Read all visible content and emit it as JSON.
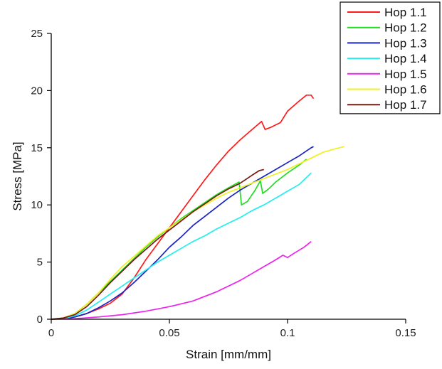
{
  "chart_data": {
    "type": "line",
    "xlabel": "Strain [mm/mm]",
    "ylabel": "Stress [MPa]",
    "xlim": [
      0,
      0.15
    ],
    "ylim": [
      0,
      25
    ],
    "xticks": [
      0,
      0.05,
      0.1,
      0.15
    ],
    "xtick_labels": [
      "0",
      "0.05",
      "0.1",
      "0.15"
    ],
    "yticks": [
      0,
      5,
      10,
      15,
      20,
      25
    ],
    "ytick_labels": [
      "0",
      "5",
      "10",
      "15",
      "20",
      "25"
    ],
    "grid": false,
    "legend_position": "top-right",
    "series": [
      {
        "name": "Hop 1.1",
        "color": "#ff1a1a",
        "points": [
          [
            0,
            0
          ],
          [
            0.005,
            0.05
          ],
          [
            0.01,
            0.2
          ],
          [
            0.015,
            0.5
          ],
          [
            0.02,
            0.9
          ],
          [
            0.025,
            1.4
          ],
          [
            0.03,
            2.2
          ],
          [
            0.035,
            3.6
          ],
          [
            0.04,
            5.2
          ],
          [
            0.045,
            6.6
          ],
          [
            0.05,
            8.0
          ],
          [
            0.055,
            9.4
          ],
          [
            0.06,
            10.8
          ],
          [
            0.065,
            12.2
          ],
          [
            0.07,
            13.5
          ],
          [
            0.075,
            14.7
          ],
          [
            0.08,
            15.7
          ],
          [
            0.085,
            16.6
          ],
          [
            0.089,
            17.3
          ],
          [
            0.0905,
            16.6
          ],
          [
            0.093,
            16.8
          ],
          [
            0.097,
            17.2
          ],
          [
            0.1,
            18.2
          ],
          [
            0.105,
            19.1
          ],
          [
            0.108,
            19.6
          ],
          [
            0.11,
            19.6
          ],
          [
            0.111,
            19.3
          ]
        ]
      },
      {
        "name": "Hop 1.2",
        "color": "#22dd22",
        "points": [
          [
            0,
            0
          ],
          [
            0.005,
            0.1
          ],
          [
            0.01,
            0.5
          ],
          [
            0.015,
            1.3
          ],
          [
            0.02,
            2.3
          ],
          [
            0.025,
            3.3
          ],
          [
            0.03,
            4.3
          ],
          [
            0.035,
            5.3
          ],
          [
            0.04,
            6.3
          ],
          [
            0.045,
            7.2
          ],
          [
            0.05,
            8.0
          ],
          [
            0.055,
            8.8
          ],
          [
            0.06,
            9.5
          ],
          [
            0.065,
            10.2
          ],
          [
            0.07,
            10.9
          ],
          [
            0.075,
            11.5
          ],
          [
            0.0795,
            12.0
          ],
          [
            0.0805,
            10.0
          ],
          [
            0.083,
            10.3
          ],
          [
            0.086,
            11.2
          ],
          [
            0.0885,
            12.1
          ],
          [
            0.0895,
            11.0
          ],
          [
            0.092,
            11.4
          ],
          [
            0.095,
            12.0
          ],
          [
            0.1,
            12.8
          ],
          [
            0.105,
            13.5
          ],
          [
            0.108,
            14.0
          ]
        ]
      },
      {
        "name": "Hop 1.3",
        "color": "#1a24c4",
        "points": [
          [
            0,
            0
          ],
          [
            0.005,
            0.05
          ],
          [
            0.01,
            0.2
          ],
          [
            0.015,
            0.5
          ],
          [
            0.02,
            1.0
          ],
          [
            0.025,
            1.6
          ],
          [
            0.03,
            2.3
          ],
          [
            0.035,
            3.2
          ],
          [
            0.04,
            4.2
          ],
          [
            0.045,
            5.2
          ],
          [
            0.05,
            6.3
          ],
          [
            0.055,
            7.2
          ],
          [
            0.06,
            8.2
          ],
          [
            0.065,
            9.0
          ],
          [
            0.07,
            9.8
          ],
          [
            0.075,
            10.6
          ],
          [
            0.08,
            11.3
          ],
          [
            0.085,
            11.9
          ],
          [
            0.09,
            12.5
          ],
          [
            0.095,
            13.1
          ],
          [
            0.1,
            13.7
          ],
          [
            0.105,
            14.3
          ],
          [
            0.11,
            15.0
          ],
          [
            0.111,
            15.1
          ]
        ]
      },
      {
        "name": "Hop 1.4",
        "color": "#22eeee",
        "points": [
          [
            0,
            0
          ],
          [
            0.005,
            0.05
          ],
          [
            0.01,
            0.3
          ],
          [
            0.015,
            0.8
          ],
          [
            0.02,
            1.5
          ],
          [
            0.025,
            2.2
          ],
          [
            0.03,
            2.9
          ],
          [
            0.035,
            3.6
          ],
          [
            0.04,
            4.3
          ],
          [
            0.045,
            5.0
          ],
          [
            0.05,
            5.6
          ],
          [
            0.055,
            6.2
          ],
          [
            0.06,
            6.8
          ],
          [
            0.065,
            7.3
          ],
          [
            0.07,
            7.9
          ],
          [
            0.075,
            8.4
          ],
          [
            0.08,
            8.9
          ],
          [
            0.085,
            9.5
          ],
          [
            0.09,
            10.0
          ],
          [
            0.095,
            10.6
          ],
          [
            0.1,
            11.2
          ],
          [
            0.105,
            11.8
          ],
          [
            0.11,
            12.8
          ]
        ]
      },
      {
        "name": "Hop 1.5",
        "color": "#ee22ee",
        "points": [
          [
            0,
            0
          ],
          [
            0.01,
            0.05
          ],
          [
            0.02,
            0.2
          ],
          [
            0.03,
            0.4
          ],
          [
            0.04,
            0.7
          ],
          [
            0.05,
            1.1
          ],
          [
            0.06,
            1.6
          ],
          [
            0.065,
            2.0
          ],
          [
            0.07,
            2.4
          ],
          [
            0.075,
            2.9
          ],
          [
            0.08,
            3.4
          ],
          [
            0.085,
            4.0
          ],
          [
            0.09,
            4.6
          ],
          [
            0.095,
            5.2
          ],
          [
            0.098,
            5.6
          ],
          [
            0.1,
            5.4
          ],
          [
            0.103,
            5.8
          ],
          [
            0.107,
            6.3
          ],
          [
            0.11,
            6.8
          ]
        ]
      },
      {
        "name": "Hop 1.6",
        "color": "#f0f022",
        "points": [
          [
            0,
            0
          ],
          [
            0.005,
            0.1
          ],
          [
            0.01,
            0.5
          ],
          [
            0.015,
            1.3
          ],
          [
            0.02,
            2.3
          ],
          [
            0.025,
            3.5
          ],
          [
            0.03,
            4.6
          ],
          [
            0.035,
            5.5
          ],
          [
            0.04,
            6.4
          ],
          [
            0.045,
            7.3
          ],
          [
            0.05,
            8.0
          ],
          [
            0.055,
            8.7
          ],
          [
            0.06,
            9.4
          ],
          [
            0.065,
            10.0
          ],
          [
            0.07,
            10.6
          ],
          [
            0.075,
            11.1
          ],
          [
            0.08,
            11.5
          ],
          [
            0.085,
            11.9
          ],
          [
            0.09,
            12.3
          ],
          [
            0.095,
            12.7
          ],
          [
            0.1,
            13.1
          ],
          [
            0.105,
            13.6
          ],
          [
            0.11,
            14.1
          ],
          [
            0.115,
            14.6
          ],
          [
            0.12,
            14.9
          ],
          [
            0.124,
            15.1
          ]
        ]
      },
      {
        "name": "Hop 1.7",
        "color": "#7a1a10",
        "points": [
          [
            0,
            0
          ],
          [
            0.005,
            0.1
          ],
          [
            0.01,
            0.4
          ],
          [
            0.015,
            1.1
          ],
          [
            0.02,
            2.1
          ],
          [
            0.025,
            3.2
          ],
          [
            0.03,
            4.2
          ],
          [
            0.035,
            5.2
          ],
          [
            0.04,
            6.1
          ],
          [
            0.045,
            7.0
          ],
          [
            0.05,
            7.8
          ],
          [
            0.055,
            8.6
          ],
          [
            0.06,
            9.4
          ],
          [
            0.065,
            10.1
          ],
          [
            0.07,
            10.8
          ],
          [
            0.075,
            11.4
          ],
          [
            0.08,
            11.9
          ],
          [
            0.085,
            12.6
          ],
          [
            0.088,
            13.0
          ],
          [
            0.09,
            13.1
          ]
        ]
      }
    ]
  }
}
